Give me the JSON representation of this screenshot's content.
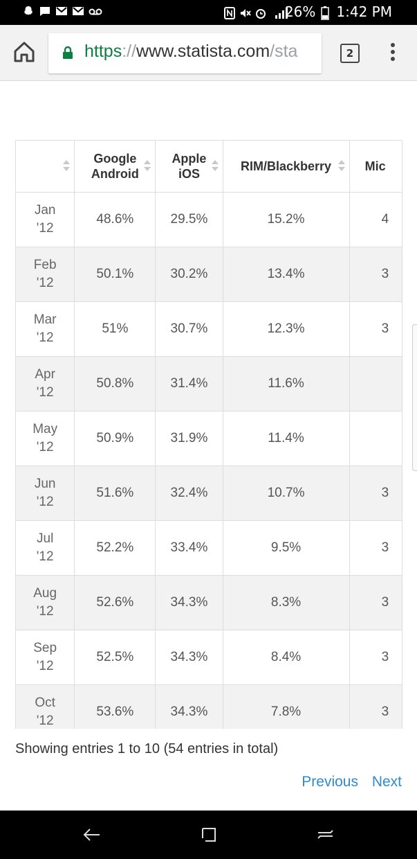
{
  "status_bar": {
    "battery": "26%",
    "time": "1:42 PM"
  },
  "browser": {
    "url_scheme": "https",
    "url_sep": "://",
    "url_host": "www.statista.com",
    "url_path": "/sta",
    "tab_count": "2"
  },
  "table": {
    "columns": [
      "",
      "Google Android",
      "Apple iOS",
      "RIM/Blackberry",
      "Mic"
    ],
    "rows": [
      {
        "date": "Jan '12",
        "android": "48.6%",
        "ios": "29.5%",
        "rim": "15.2%",
        "mic": "4"
      },
      {
        "date": "Feb '12",
        "android": "50.1%",
        "ios": "30.2%",
        "rim": "13.4%",
        "mic": "3"
      },
      {
        "date": "Mar '12",
        "android": "51%",
        "ios": "30.7%",
        "rim": "12.3%",
        "mic": "3"
      },
      {
        "date": "Apr '12",
        "android": "50.8%",
        "ios": "31.4%",
        "rim": "11.6%",
        "mic": ""
      },
      {
        "date": "May '12",
        "android": "50.9%",
        "ios": "31.9%",
        "rim": "11.4%",
        "mic": ""
      },
      {
        "date": "Jun '12",
        "android": "51.6%",
        "ios": "32.4%",
        "rim": "10.7%",
        "mic": "3"
      },
      {
        "date": "Jul '12",
        "android": "52.2%",
        "ios": "33.4%",
        "rim": "9.5%",
        "mic": "3"
      },
      {
        "date": "Aug '12",
        "android": "52.6%",
        "ios": "34.3%",
        "rim": "8.3%",
        "mic": "3"
      },
      {
        "date": "Sep '12",
        "android": "52.5%",
        "ios": "34.3%",
        "rim": "8.4%",
        "mic": "3"
      },
      {
        "date": "Oct '12",
        "android": "53.6%",
        "ios": "34.3%",
        "rim": "7.8%",
        "mic": "3"
      }
    ]
  },
  "footer": {
    "entries_info": "Showing entries 1 to 10 (54 entries in total)",
    "previous_label": "Previous",
    "next_label": "Next"
  },
  "colors": {
    "link": "#2f8bd0",
    "https_green": "#0b8043",
    "alt_row": "#f2f2f2"
  },
  "icons": [
    "snapchat-icon",
    "message-icon",
    "gmail-icon",
    "gmail-icon",
    "voicemail-icon",
    "nfc-icon",
    "mute-icon",
    "alarm-icon",
    "signal-icon",
    "battery-icon",
    "home-icon",
    "lock-icon",
    "tabs-icon",
    "menu-icon",
    "back-icon",
    "recents-icon",
    "home-nav-icon"
  ]
}
